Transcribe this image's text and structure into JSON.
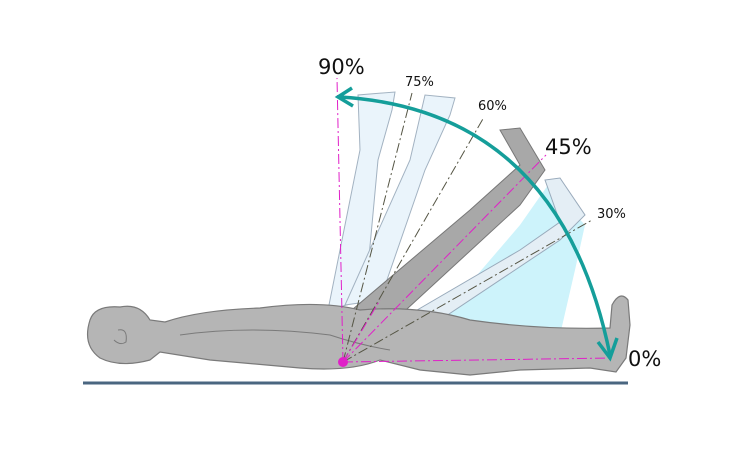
{
  "diagram": {
    "labels": {
      "deg90": "90%",
      "deg75": "75%",
      "deg60": "60%",
      "deg45": "45%",
      "deg30": "30%",
      "deg0": "0%"
    },
    "colors": {
      "body": "#b5b5b5",
      "outline": "#7a7a7a",
      "raised_leg": "#e8f3fb",
      "range_fill": "#cdf3fb",
      "arc": "#159e9a",
      "guide_lines": "#e020c8",
      "ground": "#4a6680"
    }
  }
}
